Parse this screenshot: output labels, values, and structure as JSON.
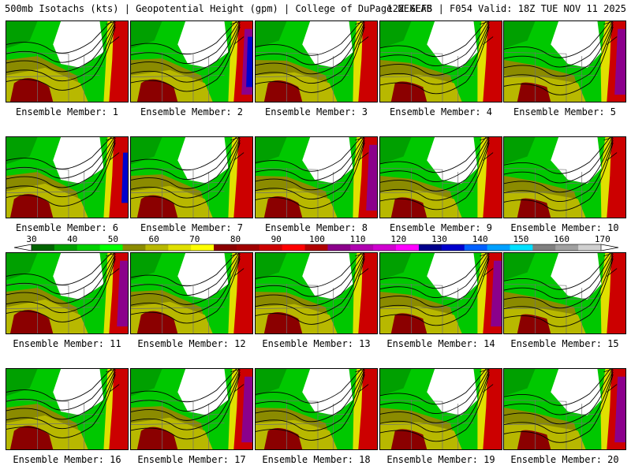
{
  "header": {
    "left_title": "500mb Isotachs (kts) | Geopotential Height (gpm) | College of DuPage NEXLAB",
    "right_title": "12Z GEFS | F054 Valid: 18Z TUE NOV 11 2025"
  },
  "members": [
    {
      "label": "Ensemble Member: 1"
    },
    {
      "label": "Ensemble Member: 2"
    },
    {
      "label": "Ensemble Member: 3"
    },
    {
      "label": "Ensemble Member: 4"
    },
    {
      "label": "Ensemble Member: 5"
    },
    {
      "label": "Ensemble Member: 6"
    },
    {
      "label": "Ensemble Member: 7"
    },
    {
      "label": "Ensemble Member: 8"
    },
    {
      "label": "Ensemble Member: 9"
    },
    {
      "label": "Ensemble Member: 10"
    },
    {
      "label": "Ensemble Member: 11"
    },
    {
      "label": "Ensemble Member: 12"
    },
    {
      "label": "Ensemble Member: 13"
    },
    {
      "label": "Ensemble Member: 14"
    },
    {
      "label": "Ensemble Member: 15"
    },
    {
      "label": "Ensemble Member: 16"
    },
    {
      "label": "Ensemble Member: 17"
    },
    {
      "label": "Ensemble Member: 18"
    },
    {
      "label": "Ensemble Member: 19"
    },
    {
      "label": "Ensemble Member: 20"
    }
  ],
  "colorbar": {
    "labels": [
      "30",
      "40",
      "50",
      "60",
      "70",
      "80",
      "90",
      "100",
      "110",
      "120",
      "130",
      "140",
      "150",
      "160",
      "170"
    ],
    "colors": [
      "#006400",
      "#00a000",
      "#00d000",
      "#00ff00",
      "#8b8b00",
      "#b8b800",
      "#e0e000",
      "#ffff00",
      "#8b0000",
      "#a00000",
      "#cc0000",
      "#ff0000",
      "#b00000",
      "#8b008b",
      "#b000b0",
      "#d000d0",
      "#ff00ff",
      "#00008b",
      "#0000cd",
      "#0060ff",
      "#00a0ff",
      "#00e0ff",
      "#808080",
      "#a0a0a0",
      "#d0d0d0"
    ]
  }
}
